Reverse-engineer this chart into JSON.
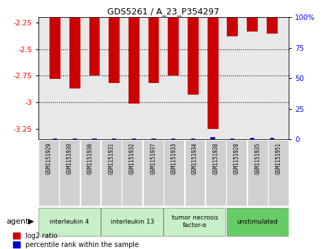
{
  "title": "GDS5261 / A_23_P354297",
  "samples": [
    "GSM1151929",
    "GSM1151930",
    "GSM1151936",
    "GSM1151931",
    "GSM1151932",
    "GSM1151937",
    "GSM1151933",
    "GSM1151934",
    "GSM1151938",
    "GSM1151928",
    "GSM1151935",
    "GSM1151951"
  ],
  "log2_ratio": [
    -2.78,
    -2.87,
    -2.75,
    -2.82,
    -3.01,
    -2.82,
    -2.75,
    -2.93,
    -3.25,
    -2.38,
    -2.33,
    -2.35
  ],
  "percentile": [
    3,
    4,
    4,
    4,
    4,
    4,
    4,
    3,
    10,
    4,
    5,
    5
  ],
  "ylim_left": [
    -3.35,
    -2.2
  ],
  "ylim_right": [
    0,
    100
  ],
  "yticks_left": [
    -3.25,
    -3.0,
    -2.75,
    -2.5,
    -2.25
  ],
  "yticks_right": [
    0,
    25,
    50,
    75,
    100
  ],
  "hlines": [
    -3.0,
    -2.75,
    -2.5
  ],
  "agents": [
    {
      "label": "interleukin 4",
      "indices": [
        0,
        1,
        2
      ],
      "color": "#c8f0c8"
    },
    {
      "label": "interleukin 13",
      "indices": [
        3,
        4,
        5
      ],
      "color": "#c8f0c8"
    },
    {
      "label": "tumor necrosis\nfactor-α",
      "indices": [
        6,
        7,
        8
      ],
      "color": "#c8f0c8"
    },
    {
      "label": "unstimulated",
      "indices": [
        9,
        10,
        11
      ],
      "color": "#66cc66"
    }
  ],
  "bar_color": "#cc0000",
  "percentile_color": "#0000cc",
  "background_color": "#ffffff",
  "plot_bg_color": "#e8e8e8",
  "sample_box_color": "#d0d0d0",
  "agent_label": "agent",
  "legend_log2": "log2 ratio",
  "legend_pct": "percentile rank within the sample",
  "bar_width": 0.55
}
